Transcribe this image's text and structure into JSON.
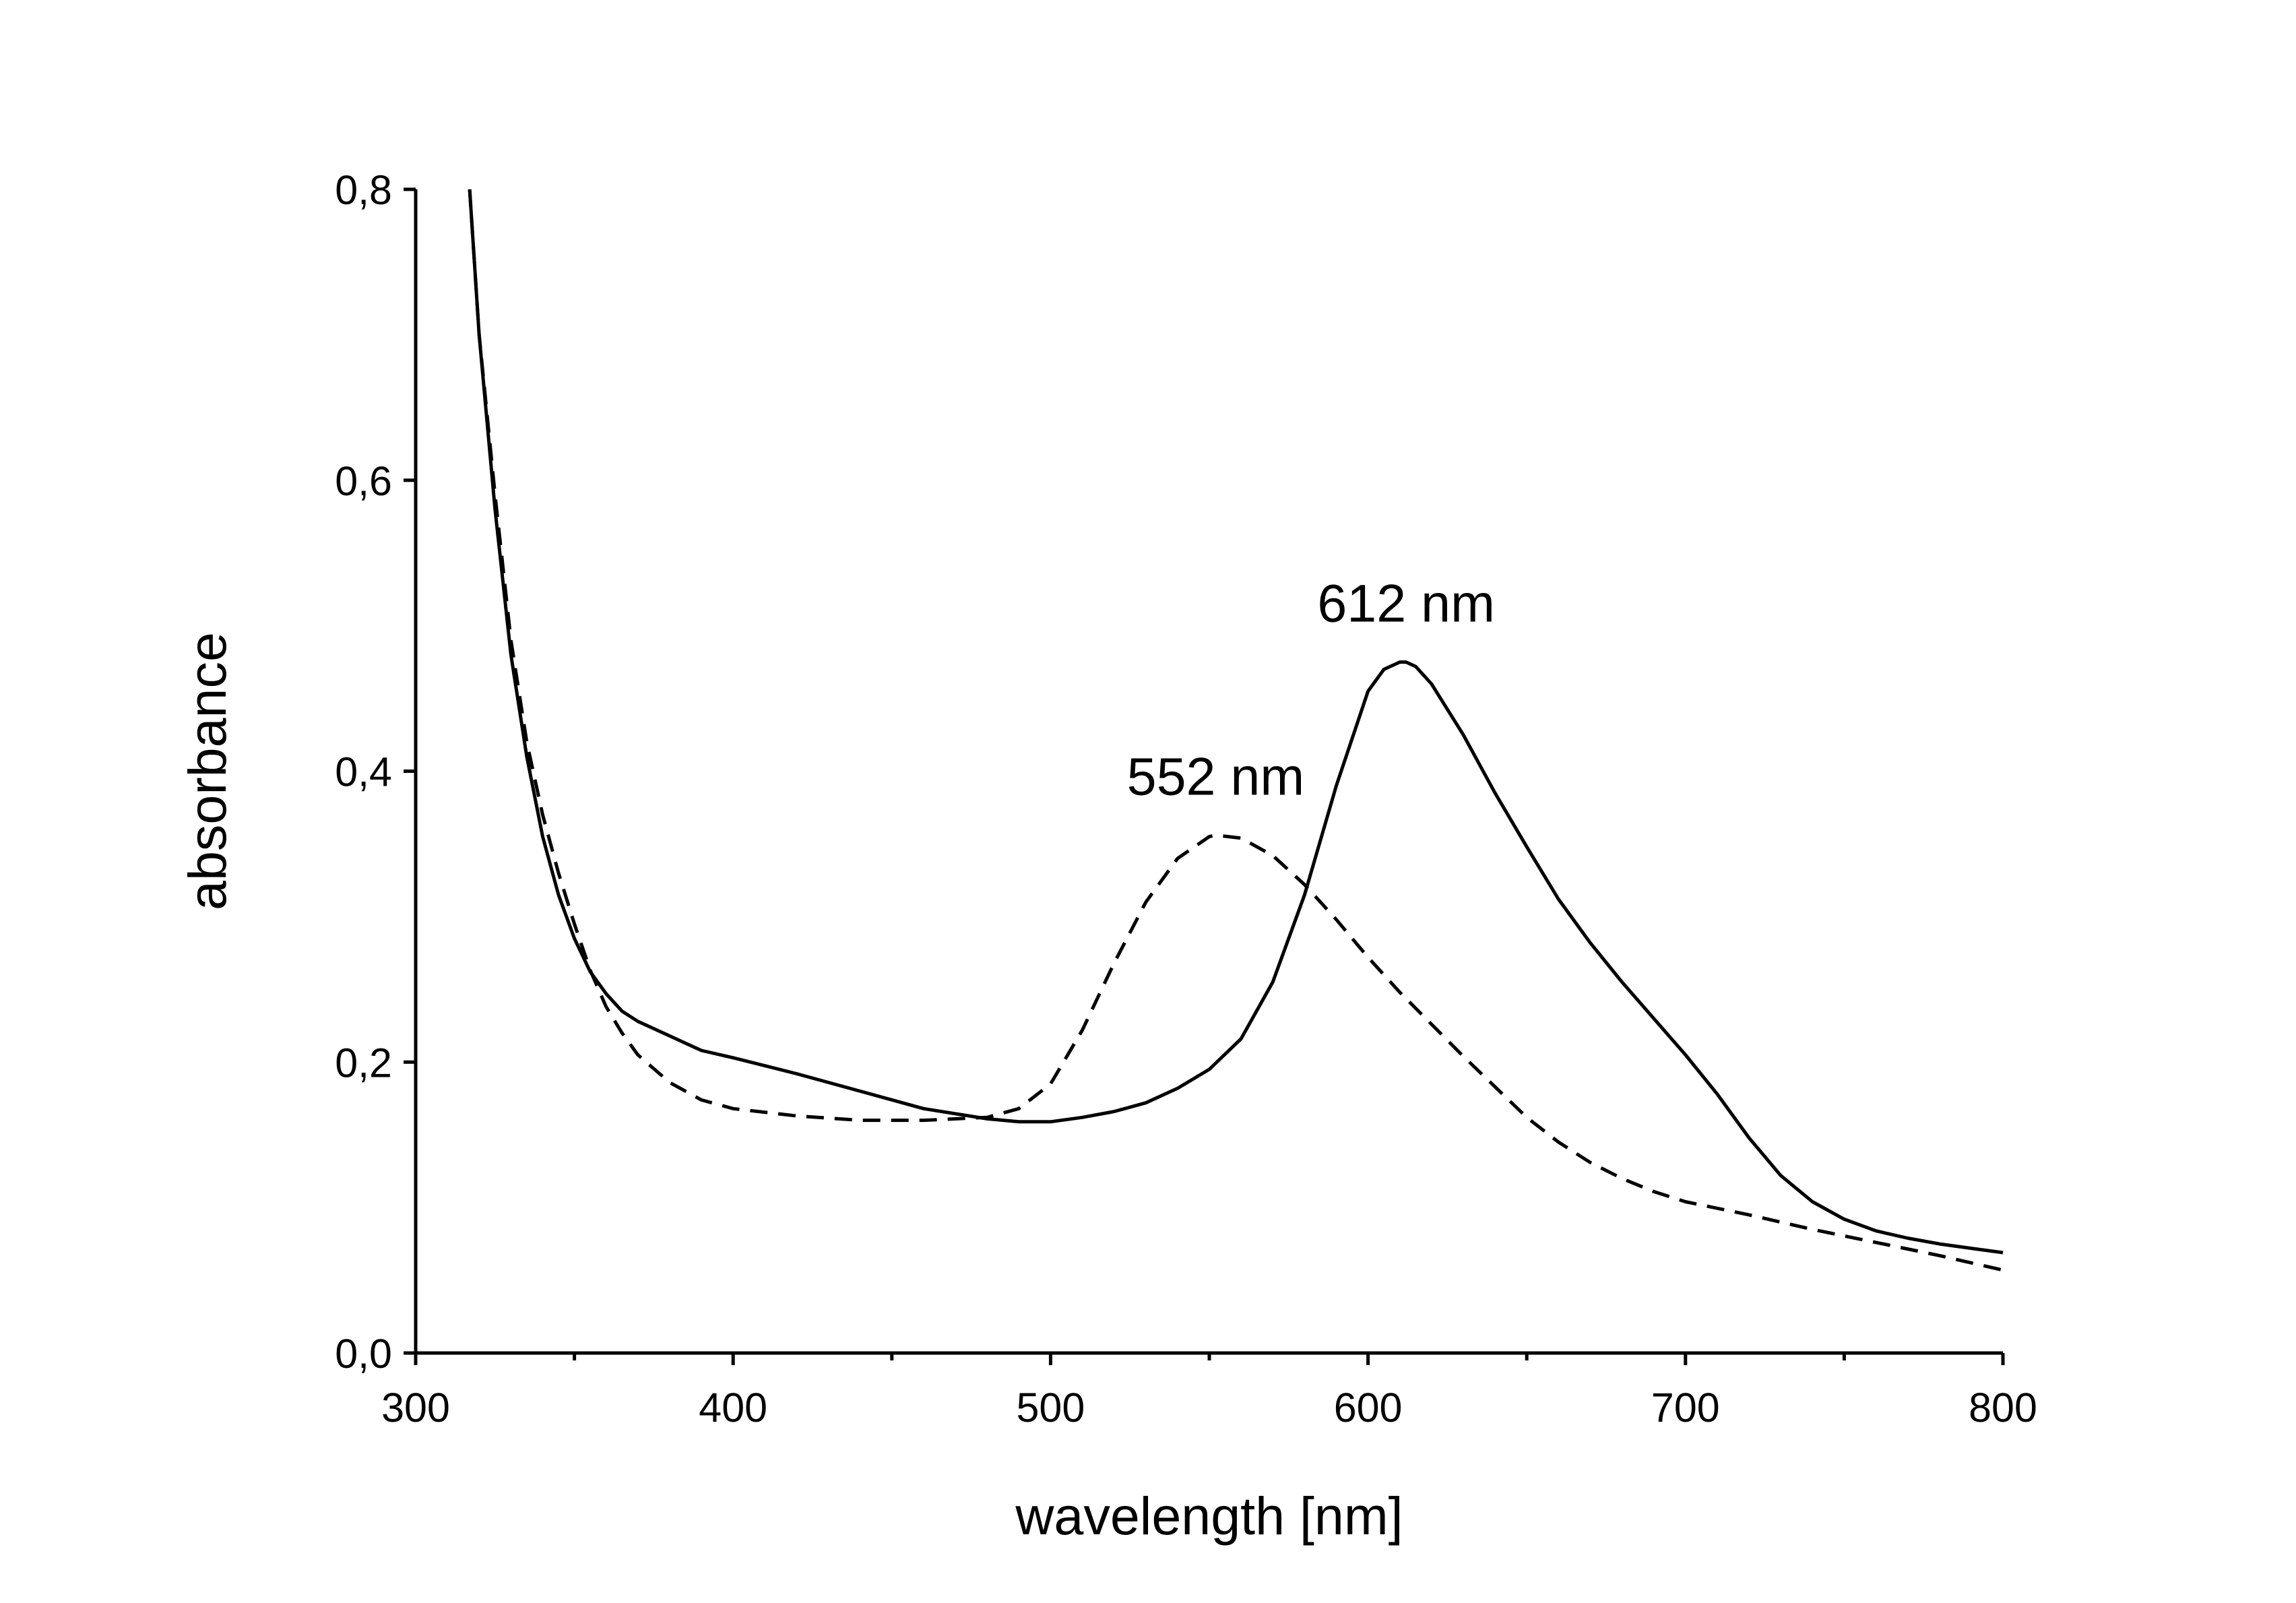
{
  "chart_data": {
    "type": "line",
    "title": "",
    "xlabel": "wavelength [nm]",
    "ylabel": "absorbance",
    "xlim": [
      300,
      800
    ],
    "ylim": [
      0.0,
      0.8
    ],
    "x_ticks": [
      300,
      400,
      500,
      600,
      700,
      800
    ],
    "x_tick_labels": [
      "300",
      "400",
      "500",
      "600",
      "700",
      "800"
    ],
    "x_minor_ticks": [
      350,
      450,
      550,
      650,
      750
    ],
    "y_ticks": [
      0.0,
      0.2,
      0.4,
      0.6,
      0.8
    ],
    "y_tick_labels": [
      "0,0",
      "0,2",
      "0,4",
      "0,6",
      "0,8"
    ],
    "grid": false,
    "legend": "none",
    "line_color": "#000000",
    "series": [
      {
        "style": "solid",
        "x": [
          317,
          320,
          325,
          330,
          335,
          340,
          345,
          350,
          355,
          360,
          365,
          370,
          380,
          390,
          400,
          420,
          440,
          460,
          480,
          490,
          500,
          510,
          520,
          530,
          540,
          550,
          560,
          570,
          580,
          590,
          600,
          605,
          610,
          612,
          615,
          620,
          630,
          640,
          650,
          660,
          670,
          680,
          690,
          700,
          710,
          720,
          730,
          740,
          750,
          760,
          770,
          780,
          790,
          800
        ],
        "y": [
          0.8,
          0.7,
          0.58,
          0.48,
          0.41,
          0.355,
          0.315,
          0.285,
          0.262,
          0.247,
          0.235,
          0.228,
          0.218,
          0.208,
          0.203,
          0.192,
          0.18,
          0.168,
          0.161,
          0.159,
          0.159,
          0.162,
          0.166,
          0.172,
          0.182,
          0.195,
          0.216,
          0.255,
          0.315,
          0.39,
          0.455,
          0.47,
          0.475,
          0.475,
          0.472,
          0.46,
          0.425,
          0.385,
          0.348,
          0.312,
          0.282,
          0.255,
          0.23,
          0.205,
          0.178,
          0.148,
          0.122,
          0.104,
          0.092,
          0.084,
          0.079,
          0.075,
          0.072,
          0.069
        ]
      },
      {
        "style": "dashed",
        "x": [
          317,
          320,
          325,
          330,
          335,
          340,
          345,
          350,
          355,
          360,
          365,
          370,
          380,
          390,
          400,
          420,
          440,
          460,
          480,
          490,
          500,
          510,
          520,
          530,
          540,
          550,
          552,
          560,
          570,
          580,
          590,
          600,
          610,
          620,
          630,
          640,
          650,
          660,
          670,
          680,
          690,
          700,
          720,
          740,
          760,
          780,
          800
        ],
        "y": [
          0.8,
          0.7,
          0.59,
          0.49,
          0.42,
          0.37,
          0.33,
          0.295,
          0.263,
          0.238,
          0.22,
          0.205,
          0.186,
          0.174,
          0.168,
          0.163,
          0.16,
          0.16,
          0.162,
          0.168,
          0.185,
          0.222,
          0.268,
          0.31,
          0.34,
          0.355,
          0.356,
          0.354,
          0.342,
          0.322,
          0.298,
          0.272,
          0.248,
          0.226,
          0.204,
          0.183,
          0.162,
          0.145,
          0.131,
          0.12,
          0.111,
          0.104,
          0.095,
          0.085,
          0.076,
          0.067,
          0.057
        ]
      }
    ],
    "annotations": [
      {
        "text": "612 nm",
        "x": 612,
        "y": 0.475
      },
      {
        "text": "552 nm",
        "x": 552,
        "y": 0.356
      }
    ]
  }
}
